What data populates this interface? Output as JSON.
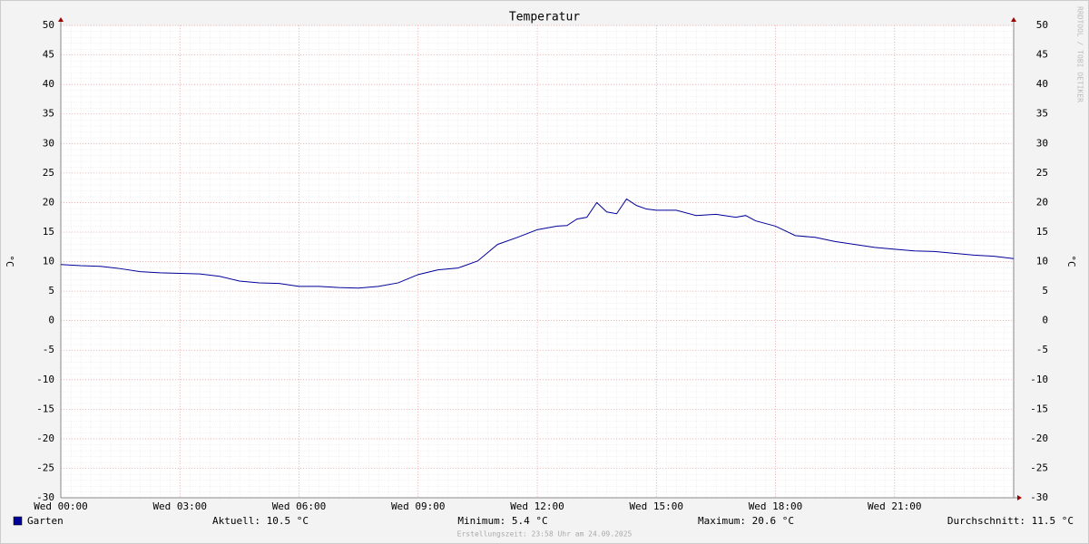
{
  "chart_data": {
    "type": "line",
    "title": "Temperatur",
    "y_label": "°C",
    "watermark": "RRDTOOL / TOBI OETIKER",
    "x": [
      0,
      0.5,
      1,
      1.5,
      2,
      2.5,
      3,
      3.5,
      4,
      4.5,
      5,
      5.5,
      6,
      6.5,
      7,
      7.5,
      8,
      8.5,
      9,
      9.5,
      10,
      10.5,
      11,
      11.5,
      12,
      12.5,
      12.75,
      13,
      13.25,
      13.5,
      13.75,
      14,
      14.25,
      14.5,
      14.75,
      15,
      15.5,
      16,
      16.5,
      17,
      17.25,
      17.5,
      18,
      18.5,
      19,
      19.5,
      20,
      20.5,
      21,
      21.5,
      22,
      22.5,
      23,
      23.5,
      24
    ],
    "series": [
      {
        "name": "Garten",
        "color": "#000099",
        "values": [
          9.5,
          9.3,
          9.2,
          8.8,
          8.3,
          8.1,
          8.0,
          7.9,
          7.5,
          6.7,
          6.4,
          6.3,
          5.8,
          5.8,
          5.6,
          5.5,
          5.8,
          6.4,
          7.8,
          8.6,
          8.9,
          10.1,
          12.9,
          14.1,
          15.4,
          16.0,
          16.1,
          17.2,
          17.5,
          20.0,
          18.4,
          18.1,
          20.6,
          19.5,
          18.9,
          18.7,
          18.7,
          17.8,
          18.0,
          17.5,
          17.8,
          16.9,
          16.0,
          14.4,
          14.1,
          13.4,
          12.9,
          12.4,
          12.1,
          11.8,
          11.7,
          11.4,
          11.1,
          10.9,
          10.5
        ]
      }
    ],
    "xlim": [
      0,
      24
    ],
    "xticks": [
      {
        "value": 0,
        "label": "Wed 00:00"
      },
      {
        "value": 3,
        "label": "Wed 03:00"
      },
      {
        "value": 6,
        "label": "Wed 06:00"
      },
      {
        "value": 9,
        "label": "Wed 09:00"
      },
      {
        "value": 12,
        "label": "Wed 12:00"
      },
      {
        "value": 15,
        "label": "Wed 15:00"
      },
      {
        "value": 18,
        "label": "Wed 18:00"
      },
      {
        "value": 21,
        "label": "Wed 21:00"
      }
    ],
    "ylim": [
      -30,
      50
    ],
    "yticks": [
      -30,
      -25,
      -20,
      -15,
      -10,
      -5,
      0,
      5,
      10,
      15,
      20,
      25,
      30,
      35,
      40,
      45,
      50
    ],
    "grid": true,
    "stats": [
      "Aktuell: 10.5 °C",
      "Minimum: 5.4 °C",
      "Maximum: 20.6 °C",
      "Durchschnitt: 11.5 °C"
    ],
    "footer": "Erstellungszeit: 23:58 Uhr am 24.09.2025"
  }
}
